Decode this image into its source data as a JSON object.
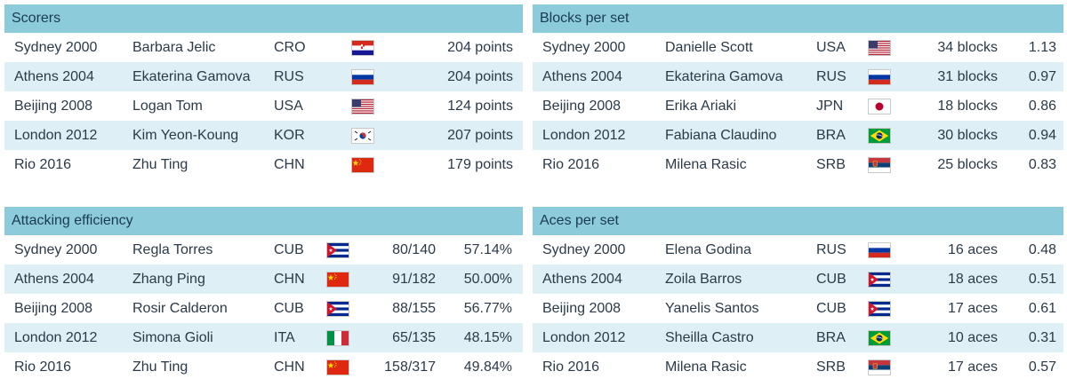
{
  "scorers": {
    "title": "Scorers",
    "rows": [
      {
        "games": "Sydney 2000",
        "name": "Barbara Jelic",
        "country": "CRO",
        "flag": "croatia-flag-icon",
        "value": "204 points"
      },
      {
        "games": "Athens 2004",
        "name": "Ekaterina Gamova",
        "country": "RUS",
        "flag": "russia-flag-icon",
        "value": "204 points"
      },
      {
        "games": "Beijing 2008",
        "name": "Logan Tom",
        "country": "USA",
        "flag": "usa-flag-icon",
        "value": "124 points"
      },
      {
        "games": "London 2012",
        "name": "Kim Yeon-Koung",
        "country": "KOR",
        "flag": "south-korea-flag-icon",
        "value": "207 points"
      },
      {
        "games": "Rio 2016",
        "name": "Zhu Ting",
        "country": "CHN",
        "flag": "china-flag-icon",
        "value": "179 points"
      }
    ]
  },
  "blocks": {
    "title": "Blocks per set",
    "rows": [
      {
        "games": "Sydney 2000",
        "name": "Danielle Scott",
        "country": "USA",
        "flag": "usa-flag-icon",
        "value": "34 blocks",
        "rate": "1.13"
      },
      {
        "games": "Athens 2004",
        "name": "Ekaterina Gamova",
        "country": "RUS",
        "flag": "russia-flag-icon",
        "value": "31 blocks",
        "rate": "0.97"
      },
      {
        "games": "Beijing 2008",
        "name": "Erika Ariaki",
        "country": "JPN",
        "flag": "japan-flag-icon",
        "value": "18 blocks",
        "rate": "0.86"
      },
      {
        "games": "London 2012",
        "name": "Fabiana Claudino",
        "country": "BRA",
        "flag": "brazil-flag-icon",
        "value": "30 blocks",
        "rate": "0.94"
      },
      {
        "games": "Rio 2016",
        "name": "Milena Rasic",
        "country": "SRB",
        "flag": "serbia-flag-icon",
        "value": "25 blocks",
        "rate": "0.83"
      }
    ]
  },
  "attacking": {
    "title": "Attacking efficiency",
    "rows": [
      {
        "games": "Sydney 2000",
        "name": "Regla Torres",
        "country": "CUB",
        "flag": "cuba-flag-icon",
        "value": "80/140",
        "rate": "57.14%"
      },
      {
        "games": "Athens 2004",
        "name": "Zhang Ping",
        "country": "CHN",
        "flag": "china-flag-icon",
        "value": "91/182",
        "rate": "50.00%"
      },
      {
        "games": "Beijing 2008",
        "name": "Rosir Calderon",
        "country": "CUB",
        "flag": "cuba-flag-icon",
        "value": "88/155",
        "rate": "56.77%"
      },
      {
        "games": "London 2012",
        "name": "Simona Gioli",
        "country": "ITA",
        "flag": "italy-flag-icon",
        "value": "65/135",
        "rate": "48.15%"
      },
      {
        "games": "Rio 2016",
        "name": "Zhu Ting",
        "country": "CHN",
        "flag": "china-flag-icon",
        "value": "158/317",
        "rate": "49.84%"
      }
    ]
  },
  "aces": {
    "title": "Aces per set",
    "rows": [
      {
        "games": "Sydney 2000",
        "name": "Elena Godina",
        "country": "RUS",
        "flag": "russia-flag-icon",
        "value": "16 aces",
        "rate": "0.48"
      },
      {
        "games": "Athens 2004",
        "name": "Zoila Barros",
        "country": "CUB",
        "flag": "cuba-flag-icon",
        "value": "18 aces",
        "rate": "0.51"
      },
      {
        "games": "Beijing 2008",
        "name": "Yanelis Santos",
        "country": "CUB",
        "flag": "cuba-flag-icon",
        "value": "17 aces",
        "rate": "0.61"
      },
      {
        "games": "London 2012",
        "name": "Sheilla Castro",
        "country": "BRA",
        "flag": "brazil-flag-icon",
        "value": "10 aces",
        "rate": "0.31"
      },
      {
        "games": "Rio 2016",
        "name": "Milena Rasic",
        "country": "SRB",
        "flag": "serbia-flag-icon",
        "value": "17 aces",
        "rate": "0.57"
      }
    ]
  },
  "colors": {
    "header_bg": "#8ccbd9",
    "alt_row_bg": "#def0f5",
    "text": "#2a3a48"
  }
}
